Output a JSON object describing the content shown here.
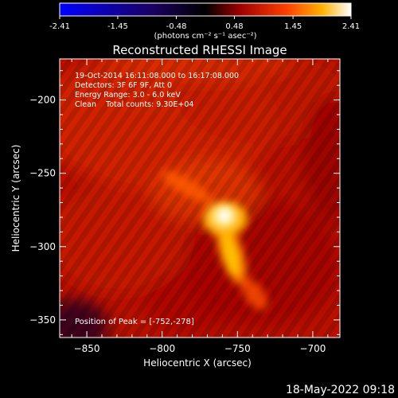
{
  "colorbar": {
    "tick_labels": [
      "-2.41",
      "-1.45",
      "-0.48",
      "0.48",
      "1.45",
      "2.41"
    ],
    "unit_label": "(photons cm⁻² s⁻¹ asec⁻²)",
    "colors": [
      "#0000ff",
      "#000000",
      "#ff0000",
      "#ffa000",
      "#ffffff"
    ]
  },
  "chart_data": {
    "type": "heatmap",
    "title": "Reconstructed RHESSI Image",
    "xlabel": "Heliocentric X (arcsec)",
    "ylabel": "Heliocentric Y (arcsec)",
    "x_ticks": [
      "-850",
      "-800",
      "-750",
      "-700"
    ],
    "y_ticks": [
      "-200",
      "-250",
      "-300",
      "-350"
    ],
    "x_tick_values": [
      -850,
      -800,
      -750,
      -700
    ],
    "y_tick_values": [
      -200,
      -250,
      -300,
      -350
    ],
    "xlim": [
      -868,
      -682
    ],
    "ylim": [
      -362,
      -172
    ],
    "annotations": [
      "19-Oct-2014 16:11:08.000 to 16:17:08.000",
      "Detectors: 3F 6F 9F, Att 0",
      "Energy Range: 3.0 - 6.0 keV",
      "Clean    Total counts: 9.30E+04"
    ],
    "peak_text": "Position of Peak = [-752,-278]",
    "peak": {
      "x": -752,
      "y": -278
    },
    "colorbar_range": [
      -2.41,
      2.41
    ]
  },
  "footer": {
    "timestamp": "18-May-2022 09:18"
  }
}
